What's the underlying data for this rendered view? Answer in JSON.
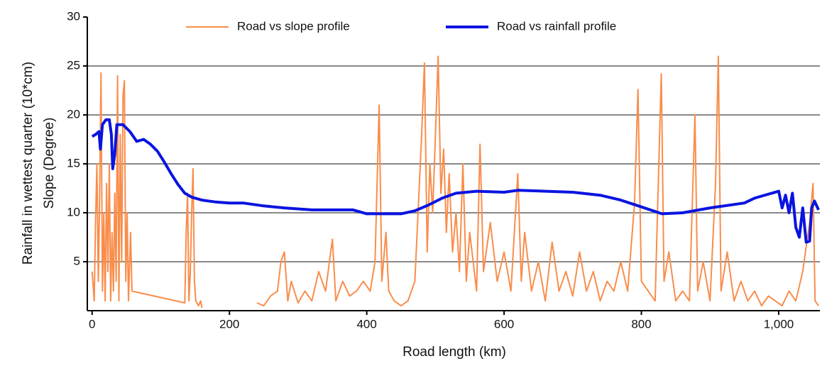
{
  "chart_data": {
    "type": "line",
    "xlabel": "Road length (km)",
    "ylabel": [
      "Rainfall in wettest quarter (10*cm)",
      "Slope (Degree)"
    ],
    "xlim": [
      -7,
      1060
    ],
    "xticks": [
      0,
      200,
      400,
      600,
      800,
      {
        "value": 1000,
        "label": "1,000"
      }
    ],
    "ylim": [
      0,
      30
    ],
    "yticks": [
      5,
      10,
      15,
      20,
      25,
      30
    ],
    "grid": true,
    "legend": "top",
    "series": [
      {
        "name": "Road vs slope profile",
        "color": "#f98d4b",
        "width": 2,
        "x": [
          0,
          3,
          5,
          7,
          9,
          11,
          13,
          15,
          17,
          19,
          21,
          23,
          25,
          27,
          29,
          31,
          33,
          35,
          37,
          39,
          41,
          43,
          45,
          47,
          49,
          51,
          53,
          56,
          58,
          135,
          137,
          139,
          141,
          143,
          145,
          147,
          149,
          151,
          155,
          158,
          160,
          200,
          240,
          250,
          260,
          270,
          275,
          280,
          285,
          290,
          300,
          310,
          320,
          330,
          340,
          350,
          355,
          365,
          375,
          385,
          395,
          405,
          412,
          418,
          422,
          428,
          432,
          440,
          450,
          460,
          470,
          476,
          480,
          484,
          488,
          492,
          496,
          500,
          504,
          508,
          512,
          516,
          520,
          525,
          530,
          535,
          540,
          545,
          550,
          560,
          565,
          570,
          580,
          590,
          600,
          610,
          620,
          625,
          630,
          640,
          650,
          660,
          670,
          680,
          690,
          700,
          710,
          720,
          730,
          740,
          750,
          760,
          770,
          780,
          790,
          795,
          800,
          810,
          820,
          825,
          829,
          833,
          840,
          850,
          860,
          870,
          878,
          882,
          890,
          900,
          908,
          912,
          916,
          925,
          935,
          945,
          955,
          965,
          975,
          985,
          995,
          1005,
          1015,
          1025,
          1035,
          1045,
          1050,
          1053,
          1058
        ],
        "values": [
          4,
          1,
          9,
          15,
          3,
          12,
          24.3,
          2,
          10,
          1,
          13,
          4,
          15,
          1,
          8,
          2,
          12,
          3,
          24,
          1,
          18,
          5,
          22,
          23.5,
          3,
          10,
          1,
          8,
          2,
          0.8,
          8,
          12,
          1,
          4,
          10,
          14.5,
          3,
          1,
          0.5,
          1,
          0.3,
          null,
          0.8,
          0.5,
          1.5,
          2,
          5,
          6,
          1,
          3,
          0.8,
          2,
          1,
          4,
          2,
          7.3,
          1,
          3,
          1.5,
          2,
          3,
          2,
          5,
          21,
          3,
          8,
          2,
          1,
          0.5,
          1,
          3,
          12,
          18,
          25.3,
          6,
          15,
          10,
          18,
          26,
          12,
          16.5,
          8,
          14,
          6,
          10,
          4,
          15,
          3,
          8,
          2,
          17,
          4,
          9,
          3,
          6,
          2,
          14,
          3,
          8,
          2,
          5,
          1,
          7,
          2,
          4,
          1.5,
          6,
          2,
          4,
          1,
          3,
          2,
          5,
          2,
          11,
          22.6,
          3,
          2,
          1,
          14,
          24.2,
          3,
          6,
          1,
          2,
          1,
          20,
          2,
          5,
          1,
          13,
          26,
          2,
          6,
          1,
          3,
          1,
          2,
          0.5,
          1.5,
          1,
          0.5,
          2,
          1,
          4,
          9,
          13,
          1,
          0.5
        ]
      },
      {
        "name": "Road vs rainfall profile",
        "color": "#0a14e0",
        "width": 4,
        "x": [
          0,
          5,
          10,
          12,
          15,
          20,
          25,
          28,
          30,
          33,
          36,
          45,
          55,
          65,
          75,
          85,
          95,
          105,
          115,
          125,
          135,
          145,
          160,
          180,
          200,
          220,
          250,
          280,
          300,
          320,
          350,
          380,
          400,
          450,
          470,
          490,
          510,
          530,
          560,
          600,
          620,
          660,
          700,
          740,
          770,
          800,
          830,
          860,
          900,
          950,
          965,
          975,
          1000,
          1005,
          1010,
          1015,
          1020,
          1025,
          1030,
          1035,
          1040,
          1045,
          1048,
          1052,
          1058
        ],
        "values": [
          17.8,
          18,
          18.3,
          16.5,
          19,
          19.5,
          19.5,
          18,
          14.5,
          16,
          19,
          19,
          18.3,
          17.3,
          17.5,
          17,
          16.3,
          15.2,
          14,
          12.9,
          12,
          11.6,
          11.3,
          11.1,
          11,
          11,
          10.7,
          10.5,
          10.4,
          10.3,
          10.3,
          10.3,
          9.9,
          9.9,
          10.2,
          10.8,
          11.5,
          12,
          12.2,
          12.1,
          12.3,
          12.2,
          12.1,
          11.8,
          11.3,
          10.6,
          9.9,
          10,
          10.5,
          11,
          11.5,
          11.7,
          12.2,
          10.5,
          11.8,
          10,
          12,
          8.5,
          7.5,
          10.5,
          7,
          7.1,
          10.5,
          11.2,
          10.3
        ]
      }
    ]
  }
}
